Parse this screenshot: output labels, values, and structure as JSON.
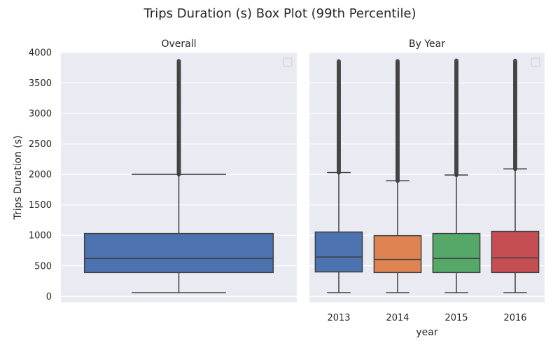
{
  "figure": {
    "title": "Trips Duration (s) Box Plot (99th Percentile)",
    "background": "#ffffff",
    "axes_facecolor": "#eaeaf2",
    "grid_color": "#ffffff",
    "box_edge_color": "#3f3f3f"
  },
  "chart_data": [
    {
      "type": "box",
      "title": "Overall",
      "xlabel": "",
      "ylabel": "Trips Duration (s)",
      "ylim": [
        -100,
        4000
      ],
      "yticks": [
        0,
        500,
        1000,
        1500,
        2000,
        2500,
        3000,
        3500,
        4000
      ],
      "grid": true,
      "legend": "top-right (empty)",
      "categories": [
        ""
      ],
      "boxes": [
        {
          "category": "",
          "whisker_low": 60,
          "q1": 390,
          "median": 620,
          "q3": 1030,
          "whisker_high": 2000,
          "outliers_from": 2000,
          "outliers_to": 3870,
          "color": "#4c72b0"
        }
      ]
    },
    {
      "type": "box",
      "title": "By Year",
      "xlabel": "year",
      "ylabel": "",
      "ylim": [
        -100,
        4000
      ],
      "yticks": [
        0,
        500,
        1000,
        1500,
        2000,
        2500,
        3000,
        3500,
        4000
      ],
      "grid": true,
      "legend": "top-right (empty)",
      "categories": [
        "2013",
        "2014",
        "2015",
        "2016"
      ],
      "boxes": [
        {
          "category": "2013",
          "whisker_low": 60,
          "q1": 400,
          "median": 645,
          "q3": 1055,
          "whisker_high": 2030,
          "outliers_from": 2030,
          "outliers_to": 3870,
          "color": "#4c72b0"
        },
        {
          "category": "2014",
          "whisker_low": 60,
          "q1": 390,
          "median": 605,
          "q3": 995,
          "whisker_high": 1895,
          "outliers_from": 1895,
          "outliers_to": 3870,
          "color": "#dd8452"
        },
        {
          "category": "2015",
          "whisker_low": 60,
          "q1": 390,
          "median": 620,
          "q3": 1030,
          "whisker_high": 1990,
          "outliers_from": 1990,
          "outliers_to": 3870,
          "color": "#55a868"
        },
        {
          "category": "2016",
          "whisker_low": 60,
          "q1": 390,
          "median": 630,
          "q3": 1065,
          "whisker_high": 2090,
          "outliers_from": 2090,
          "outliers_to": 3870,
          "color": "#c44e52"
        }
      ]
    }
  ]
}
